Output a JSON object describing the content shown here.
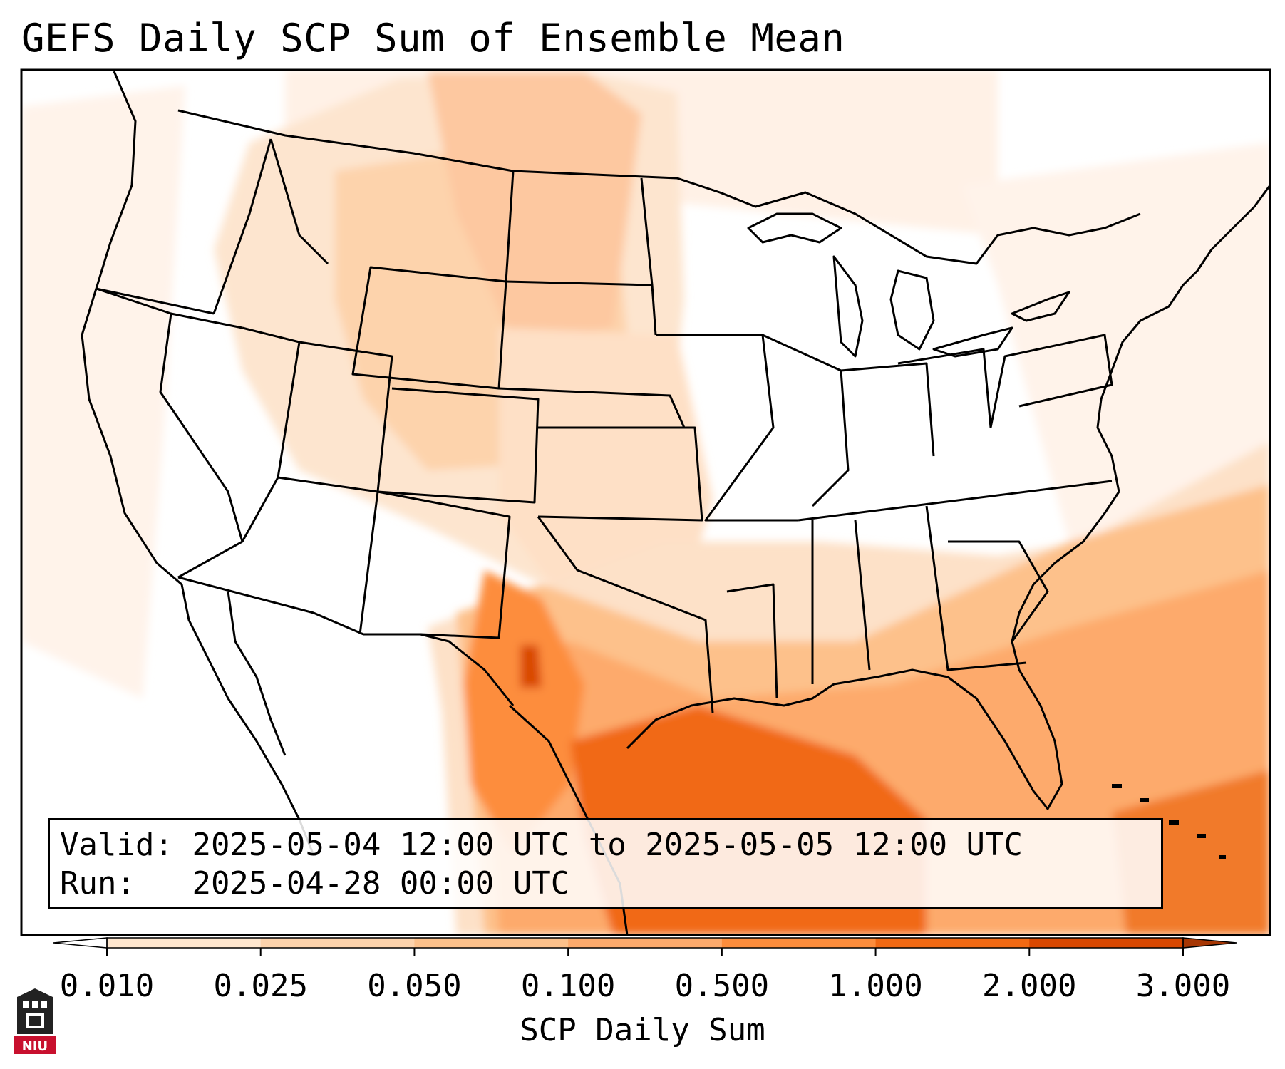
{
  "title": "GEFS Daily SCP Sum of Ensemble Mean",
  "info": {
    "valid_label": "Valid:",
    "valid_value": "2025-05-04 12:00 UTC to 2025-05-05 12:00 UTC",
    "run_label": "Run:",
    "run_value": "2025-04-28 00:00 UTC"
  },
  "colorbar": {
    "label": "SCP Daily Sum",
    "ticks": [
      "0.010",
      "0.025",
      "0.050",
      "0.100",
      "0.500",
      "1.000",
      "2.000",
      "3.000"
    ],
    "colors": [
      "#fee6ce",
      "#fdd3ac",
      "#fdc18b",
      "#fdaa6c",
      "#fd8d3c",
      "#f16913",
      "#d94801"
    ],
    "under_color": "#ffffff",
    "over_color": "#a63603",
    "extend": "both"
  },
  "logo": {
    "text": "NIU",
    "color": "#c8102e"
  },
  "colors": {
    "boundary": "#000000",
    "background": "#ffffff"
  }
}
